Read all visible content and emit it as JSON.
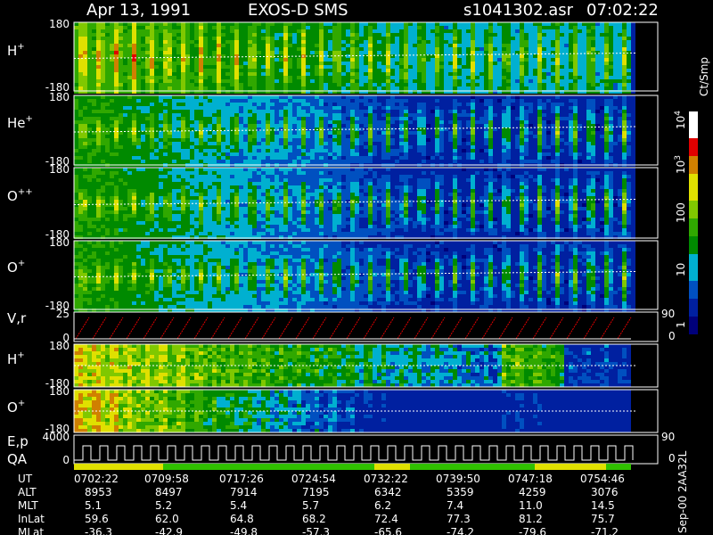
{
  "header": {
    "date": "Apr 13, 1991",
    "instrument": "EXOS-D SMS",
    "file": "s1041302.asr",
    "time": "07:02:22"
  },
  "panels": [
    {
      "label": "H",
      "sup": "+",
      "top": "180",
      "bottom": "-180"
    },
    {
      "label": "He",
      "sup": "+",
      "top": "180",
      "bottom": "-180"
    },
    {
      "label": "O",
      "sup": "++",
      "top": "180",
      "bottom": "-180"
    },
    {
      "label": "O",
      "sup": "+",
      "top": "180",
      "bottom": "-180"
    },
    {
      "label": "V,r",
      "top": "25",
      "bottom": "0",
      "right_top": "90",
      "right_bottom": "0"
    },
    {
      "label": "H",
      "sup": "+",
      "top": "180",
      "bottom": "-180"
    },
    {
      "label": "O",
      "sup": "+",
      "top": "180",
      "bottom": "-180"
    },
    {
      "label": "E,p",
      "top": "4000",
      "bottom": "0",
      "right_top": "90",
      "right_bottom": "0"
    },
    {
      "label": "QA"
    }
  ],
  "colorbar": {
    "title": "Ct/Smp",
    "ticks": [
      {
        "base": "10",
        "exp": "4"
      },
      {
        "base": "10",
        "exp": "3"
      },
      {
        "base": "100"
      },
      {
        "base": "10"
      },
      {
        "base": "1"
      }
    ]
  },
  "footer_id": "Sep-00 2AA32L",
  "table": {
    "rows": [
      {
        "label": "UT",
        "values": [
          "0702:22",
          "0709:58",
          "0717:26",
          "0724:54",
          "0732:22",
          "0739:50",
          "0747:18",
          "0754:46"
        ]
      },
      {
        "label": "ALT",
        "values": [
          "8953",
          "8497",
          "7914",
          "7195",
          "6342",
          "5359",
          "4259",
          "3076"
        ]
      },
      {
        "label": "MLT",
        "values": [
          "5.1",
          "5.2",
          "5.4",
          "5.7",
          "6.2",
          "7.4",
          "11.0",
          "14.5"
        ]
      },
      {
        "label": "InLat",
        "values": [
          "59.6",
          "62.0",
          "64.8",
          "68.2",
          "72.4",
          "77.3",
          "81.2",
          "75.7"
        ]
      },
      {
        "label": "MLat",
        "values": [
          "-36.3",
          "-42.9",
          "-49.8",
          "-57.3",
          "-65.6",
          "-74.2",
          "-79.6",
          "-71.2"
        ]
      }
    ]
  }
}
